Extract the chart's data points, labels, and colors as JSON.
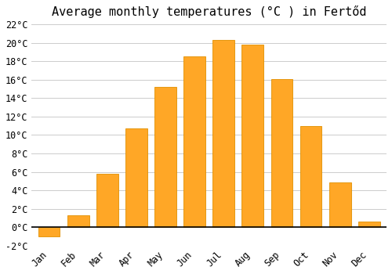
{
  "title": "Average monthly temperatures (°C ) in Fertőd",
  "months": [
    "Jan",
    "Feb",
    "Mar",
    "Apr",
    "May",
    "Jun",
    "Jul",
    "Aug",
    "Sep",
    "Oct",
    "Nov",
    "Dec"
  ],
  "temperatures": [
    -1.0,
    1.3,
    5.8,
    10.7,
    15.2,
    18.5,
    20.3,
    19.8,
    16.1,
    11.0,
    4.9,
    0.6
  ],
  "bar_color": "#FFA726",
  "bar_edge_color": "#E09000",
  "ylim": [
    -2,
    22
  ],
  "yticks": [
    -2,
    0,
    2,
    4,
    6,
    8,
    10,
    12,
    14,
    16,
    18,
    20,
    22
  ],
  "background_color": "#FFFFFF",
  "grid_color": "#CCCCCC",
  "title_fontsize": 11,
  "tick_fontsize": 8.5,
  "font_family": "monospace",
  "bar_width": 0.75
}
